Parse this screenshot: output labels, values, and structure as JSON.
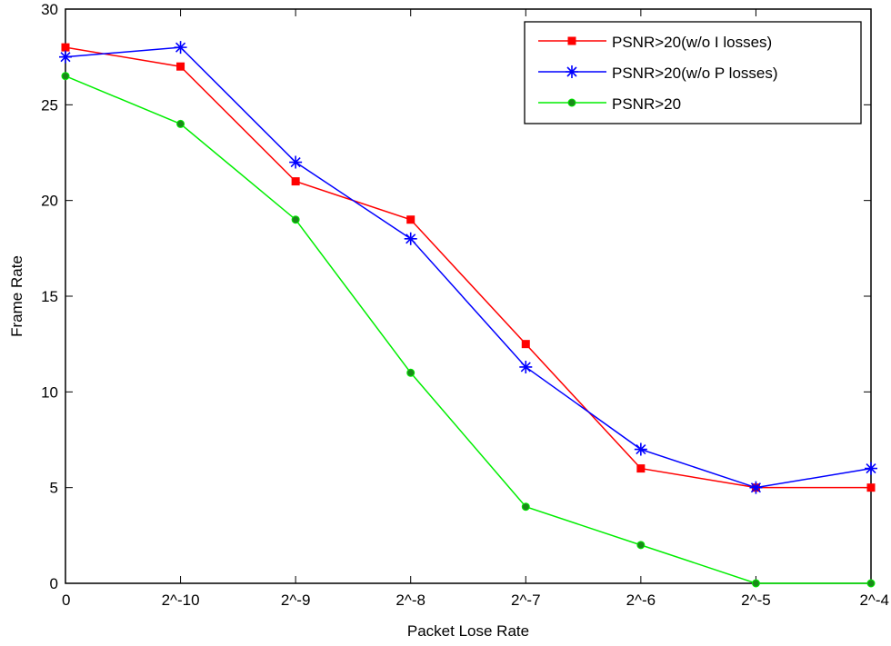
{
  "chart_data": {
    "type": "line",
    "title": "",
    "xlabel": "Packet Lose Rate",
    "ylabel": "Frame Rate",
    "categories": [
      "0",
      "2^-10",
      "2^-9",
      "2^-8",
      "2^-7",
      "2^-6",
      "2^-5",
      "2^-4"
    ],
    "ylim": [
      0,
      30
    ],
    "yticks": [
      0,
      5,
      10,
      15,
      20,
      25,
      30
    ],
    "grid": false,
    "legend_position": "top-right",
    "series": [
      {
        "name": "PSNR>20(w/o I losses)",
        "color": "#ff0000",
        "marker": "square",
        "values": [
          28,
          27,
          21,
          19,
          12.5,
          6,
          5,
          5
        ]
      },
      {
        "name": "PSNR>20(w/o P losses)",
        "color": "#0000ff",
        "marker": "asterisk",
        "values": [
          27.5,
          28,
          22,
          18,
          11.3,
          7,
          5,
          6
        ]
      },
      {
        "name": "PSNR>20",
        "color": "#00ee00",
        "marker": "dot",
        "values": [
          26.5,
          24,
          19,
          11,
          4,
          2,
          0,
          0
        ]
      }
    ]
  }
}
